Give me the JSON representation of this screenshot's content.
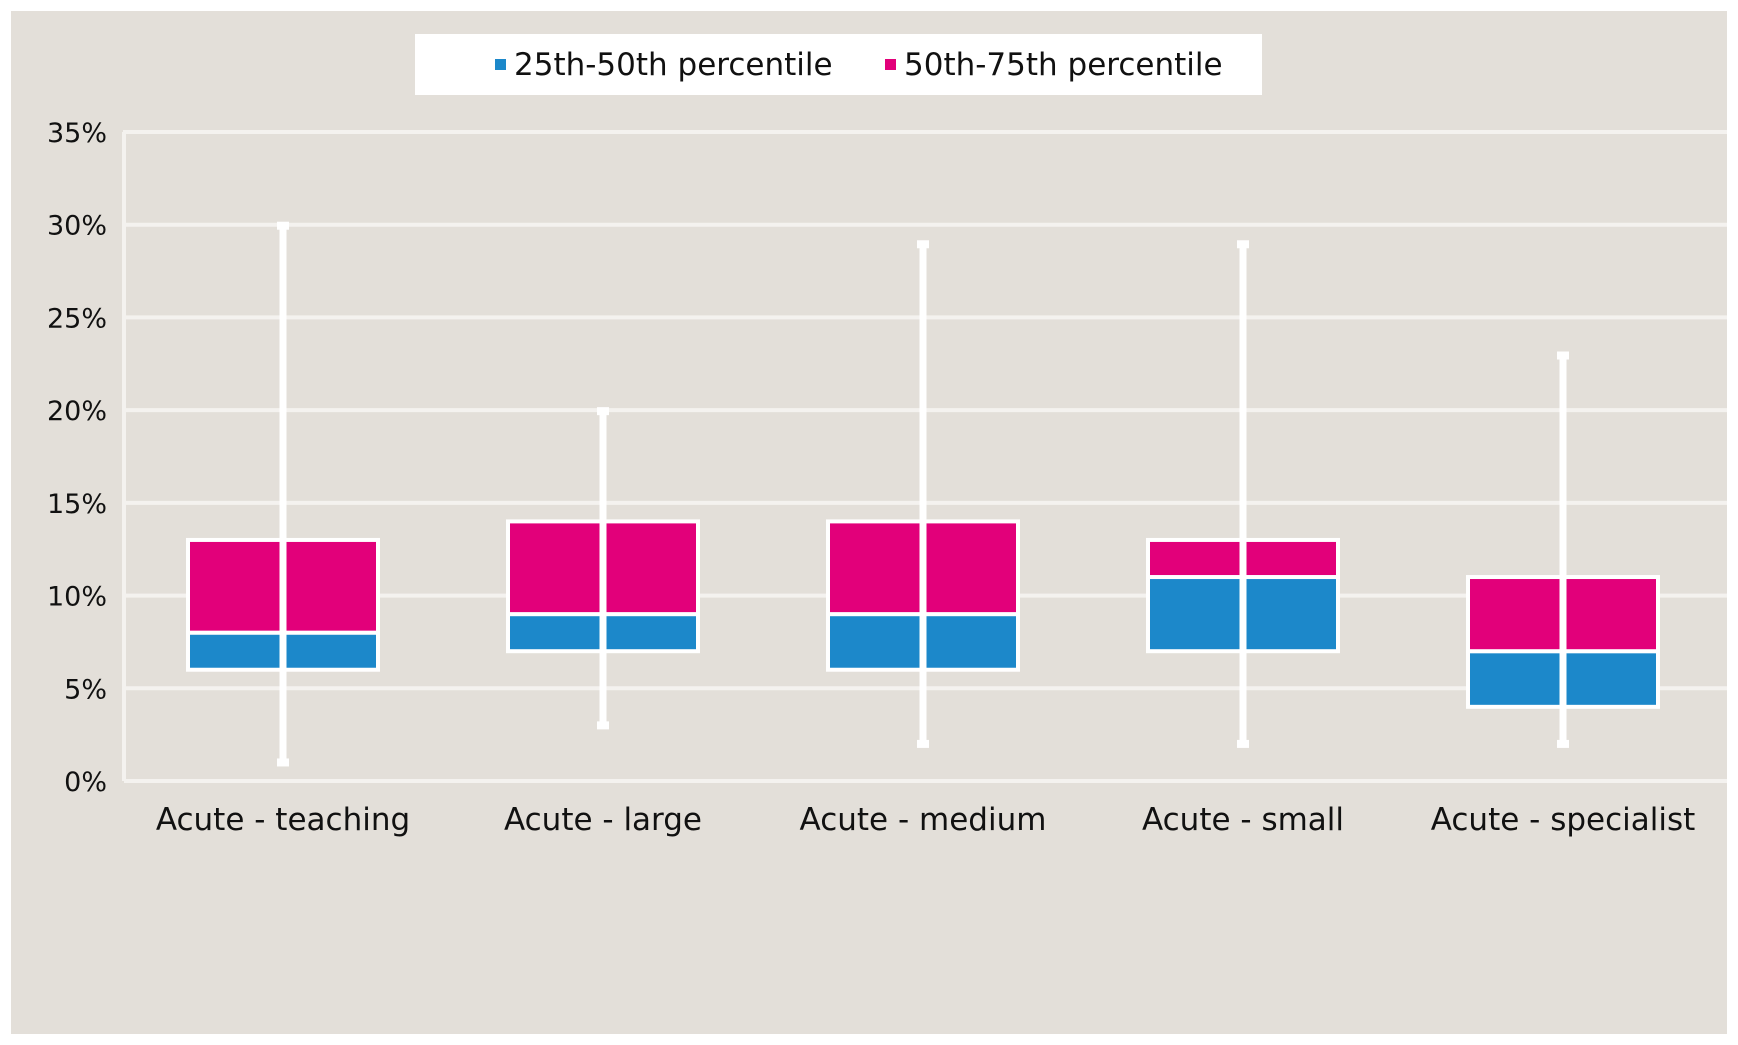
{
  "chart_data": {
    "type": "box",
    "title": "",
    "xlabel": "",
    "ylabel": "",
    "categories": [
      "Acute - teaching",
      "Acute - large",
      "Acute - medium",
      "Acute - small",
      "Acute - specialist"
    ],
    "ylim": [
      0,
      35
    ],
    "y_ticks": [
      0,
      5,
      10,
      15,
      20,
      25,
      30,
      35
    ],
    "y_tick_labels": [
      "0%",
      "5%",
      "10%",
      "15%",
      "20%",
      "25%",
      "30%",
      "35%"
    ],
    "units": "%",
    "grid": true,
    "legend_position": "top",
    "series": [
      {
        "name": "25th-50th percentile",
        "color": "#1c88ca",
        "from": [
          6,
          7,
          6,
          7,
          4
        ],
        "to": [
          8,
          9,
          9,
          11,
          7
        ]
      },
      {
        "name": "50th-75th percentile",
        "color": "#e2007a",
        "from": [
          8,
          9,
          9,
          11,
          7
        ],
        "to": [
          13,
          14,
          14,
          13,
          11
        ]
      }
    ],
    "whiskers": {
      "min": [
        1,
        3,
        2,
        2,
        2
      ],
      "max": [
        30,
        20,
        29,
        29,
        23
      ]
    }
  },
  "colors": {
    "background": "#e3dfd9",
    "grid": "#f4f2ef",
    "whisker": "#ffffff"
  }
}
